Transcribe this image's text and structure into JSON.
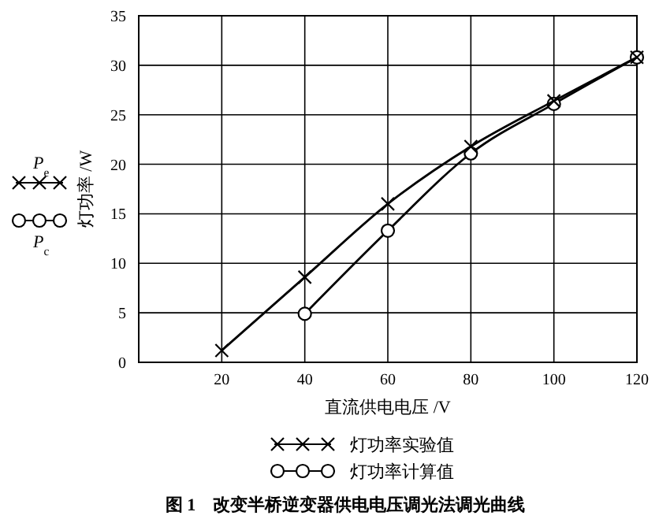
{
  "chart_data": {
    "type": "line",
    "title": "图 1    改变半桥逆变器供电电压调光法调光曲线",
    "xlabel": "直流供电电压 /V",
    "ylabel": "灯功率 /W",
    "x": [
      20,
      40,
      60,
      80,
      100,
      120
    ],
    "series": [
      {
        "name": "灯功率实验值",
        "color": "#000000",
        "marker": "cross",
        "values": [
          1.2,
          8.6,
          16,
          21.8,
          26.4,
          30.8
        ]
      },
      {
        "name": "灯功率计算值",
        "color": "#000000",
        "marker": "circle",
        "x": [
          40,
          60,
          80,
          100,
          120
        ],
        "values": [
          4.9,
          13.3,
          21.1,
          26.1,
          30.8
        ]
      }
    ],
    "annotations": [
      "P$_{e}$",
      "P$_{c}$"
    ],
    "xlim": [
      0,
      120
    ],
    "xticks": [
      20,
      40,
      60,
      80,
      100,
      120
    ],
    "ylim": [
      0,
      35
    ],
    "yticks": [
      0,
      5,
      10,
      15,
      20,
      25,
      30,
      35
    ],
    "grid": true,
    "legend": "bottom",
    "line_style": "solid"
  }
}
